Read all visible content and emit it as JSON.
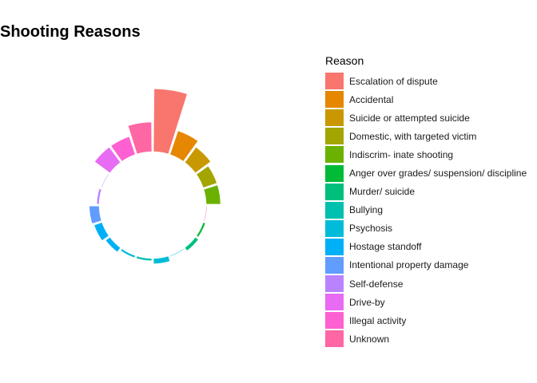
{
  "chart_data": {
    "type": "bar",
    "coord": "polar",
    "title": "Shooting Reasons",
    "legend_title": "Reason",
    "legend_position": "right",
    "grid": false,
    "categories": [
      "Escalation of dispute",
      "Accidental",
      "Suicide or attempted suicide",
      "Domestic, with targeted victim",
      "Indiscrim- inate shooting",
      "Anger over grades/ suspension/ discipline",
      "Murder/ suicide",
      "Bullying",
      "Psychosis",
      "Hostage standoff",
      "Intentional property damage",
      "Self-defense",
      "Drive-by",
      "Illegal activity",
      "Unknown"
    ],
    "colors": [
      "#F8766D",
      "#E58700",
      "#C99800",
      "#A3A500",
      "#6BB100",
      "#00BA38",
      "#00BF7D",
      "#00C0AF",
      "#00BCD8",
      "#00B0F6",
      "#619CFF",
      "#B983FF",
      "#E76BF3",
      "#FD61D1",
      "#FF67A4"
    ],
    "bars": [
      {
        "reason": "Escalation of dispute",
        "value": 42
      },
      {
        "reason": "Accidental",
        "value": 17
      },
      {
        "reason": "Suicide or attempted suicide",
        "value": 13
      },
      {
        "reason": "Domestic, with targeted victim",
        "value": 10
      },
      {
        "reason": "Indiscrim- inate shooting",
        "value": 10
      },
      {
        "reason": "Unknown",
        "value": 1
      },
      {
        "reason": "Anger over grades/ suspension/ discipline",
        "value": 2
      },
      {
        "reason": "Murder/ suicide",
        "value": 3
      },
      {
        "reason": "Psychosis",
        "value": 1
      },
      {
        "reason": "Psychosis",
        "value": 4
      },
      {
        "reason": "Bullying",
        "value": 2
      },
      {
        "reason": "Psychosis",
        "value": 2
      },
      {
        "reason": "Hostage standoff",
        "value": 4
      },
      {
        "reason": "Hostage standoff",
        "value": 6
      },
      {
        "reason": "Intentional property damage",
        "value": 7
      },
      {
        "reason": "Self-defense",
        "value": 2
      },
      {
        "reason": "Self-defense",
        "value": 1
      },
      {
        "reason": "Drive-by",
        "value": 13
      },
      {
        "reason": "Illegal activity",
        "value": 13
      },
      {
        "reason": "Unknown",
        "value": 20
      }
    ],
    "ylim": [
      -35,
      45
    ]
  }
}
